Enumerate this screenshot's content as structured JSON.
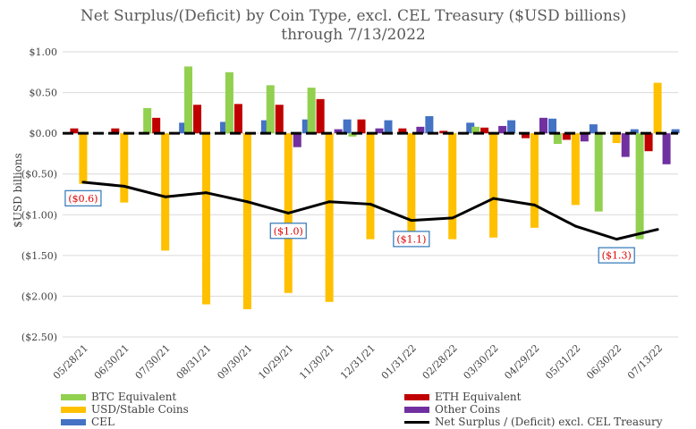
{
  "chart_data": {
    "type": "bar",
    "title": "Net Surplus/(Deficit) by Coin Type, excl. CEL Treasury ($USD billions)",
    "subtitle": "through 7/13/2022",
    "ylabel": "$USD billions",
    "ylim": [
      -2.5,
      1.0
    ],
    "yticks": [
      "$1.00",
      "$0.50",
      "$0.00",
      "($0.50)",
      "($1.00)",
      "($1.50)",
      "($2.00)",
      "($2.50)"
    ],
    "ytick_values": [
      1.0,
      0.5,
      0.0,
      -0.5,
      -1.0,
      -1.5,
      -2.0,
      -2.5
    ],
    "grid": true,
    "legend_position": "bottom",
    "categories": [
      "05/28/21",
      "06/30/21",
      "07/30/21",
      "08/31/21",
      "09/30/21",
      "10/29/21",
      "11/30/21",
      "12/31/21",
      "01/31/22",
      "02/28/22",
      "03/30/22",
      "04/29/22",
      "05/31/22",
      "06/30/22",
      "07/13/22"
    ],
    "series": [
      {
        "name": "BTC Equivalent",
        "color": "#92D050",
        "values": [
          0.0,
          0.0,
          0.31,
          0.82,
          0.75,
          0.59,
          0.56,
          -0.04,
          0.0,
          0.0,
          0.08,
          0.0,
          -0.13,
          -0.96,
          -1.3
        ]
      },
      {
        "name": "ETH Equivalent",
        "color": "#C00000",
        "values": [
          0.06,
          0.06,
          0.19,
          0.35,
          0.36,
          0.35,
          0.42,
          0.17,
          0.06,
          0.03,
          0.07,
          -0.06,
          -0.08,
          0.0,
          -0.22
        ]
      },
      {
        "name": "USD/Stable Coins",
        "color": "#FFC000",
        "values": [
          -0.62,
          -0.85,
          -1.44,
          -2.1,
          -2.16,
          -1.96,
          -2.07,
          -1.3,
          -1.36,
          -1.3,
          -1.28,
          -1.16,
          -0.88,
          -0.12,
          0.62
        ]
      },
      {
        "name": "Other Coins",
        "color": "#7030A0",
        "values": [
          0.0,
          0.0,
          0.0,
          0.0,
          0.0,
          -0.17,
          0.05,
          0.06,
          0.08,
          0.0,
          0.09,
          0.19,
          -0.1,
          -0.29,
          -0.38
        ]
      },
      {
        "name": "CEL",
        "color": "#4472C4",
        "values": [
          0.0,
          0.0,
          0.13,
          0.14,
          0.16,
          0.17,
          0.17,
          0.16,
          0.21,
          0.13,
          0.16,
          0.18,
          0.11,
          0.05,
          0.05
        ]
      }
    ],
    "line_series": {
      "name": "Net Surplus / (Deficit) excl. CEL Treasury",
      "color": "#000000",
      "values": [
        -0.6,
        -0.65,
        -0.78,
        -0.73,
        -0.84,
        -0.98,
        -0.84,
        -0.87,
        -1.07,
        -1.04,
        -0.8,
        -0.88,
        -1.14,
        -1.3,
        -1.18
      ]
    },
    "annotations": [
      {
        "category_index": 0,
        "value": -0.6,
        "text": "($0.6)"
      },
      {
        "category_index": 5,
        "value": -1.0,
        "text": "($1.0)"
      },
      {
        "category_index": 8,
        "value": -1.1,
        "text": "($1.1)"
      },
      {
        "category_index": 13,
        "value": -1.3,
        "text": "($1.3)"
      }
    ]
  }
}
